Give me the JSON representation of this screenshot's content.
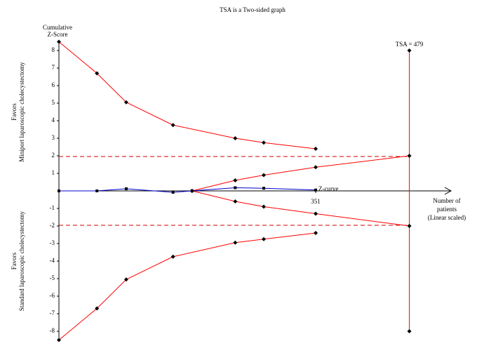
{
  "chart_data": {
    "type": "line",
    "title": "TSA is a Two-sided graph",
    "y_label": [
      "Cumulative",
      "Z-Score"
    ],
    "x_label": [
      "Number of",
      "patients",
      "(Linear scaled)"
    ],
    "side_labels": [
      {
        "lines": [
          "Favors",
          "Miniport laparoscopic cholecystectomy"
        ],
        "y": 4.5
      },
      {
        "lines": [
          "Favors",
          "Standard laparoscopic cholecystectomy"
        ],
        "y": -4
      }
    ],
    "xlim": [
      0,
      536
    ],
    "ylim": [
      -8.5,
      8.5
    ],
    "xticks": [
      351
    ],
    "yticks": [
      -8,
      -7,
      -6,
      -5,
      -4,
      -3,
      -2,
      -1,
      1,
      2,
      3,
      4,
      5,
      6,
      7,
      8
    ],
    "reference_lines": [
      1.96,
      -1.96
    ],
    "reference_color": "#cc0000",
    "series": [
      {
        "color": "#ff0000",
        "marker": "diamond",
        "x": [
          0,
          52,
          92,
          156,
          241,
          280,
          351
        ],
        "values": [
          8.5,
          6.7,
          5.05,
          3.75,
          3.0,
          2.75,
          2.4
        ]
      },
      {
        "color": "#ff0000",
        "marker": "diamond",
        "x": [
          0,
          52,
          92,
          156,
          241,
          280,
          351
        ],
        "values": [
          -8.5,
          -6.7,
          -5.05,
          -3.75,
          -2.95,
          -2.75,
          -2.4
        ]
      },
      {
        "color": "#ff0000",
        "marker": "diamond",
        "x": [
          182,
          241,
          280,
          351,
          479
        ],
        "values": [
          0,
          0.6,
          0.9,
          1.35,
          2.0
        ]
      },
      {
        "color": "#ff0000",
        "marker": "diamond",
        "x": [
          182,
          241,
          280,
          351,
          479
        ],
        "values": [
          0,
          -0.6,
          -0.9,
          -1.3,
          -2.0
        ]
      },
      {
        "name": "Z-curve",
        "color": "#0000cc",
        "marker": "square",
        "x": [
          0,
          52,
          92,
          156,
          182,
          241,
          280,
          351
        ],
        "values": [
          0,
          0,
          0.12,
          -0.08,
          0,
          0.18,
          0.15,
          0.05
        ]
      }
    ],
    "tsa": {
      "label": "TSA = 479",
      "x": 479,
      "y_range": [
        -8,
        8
      ],
      "color": "#ff0000"
    }
  }
}
